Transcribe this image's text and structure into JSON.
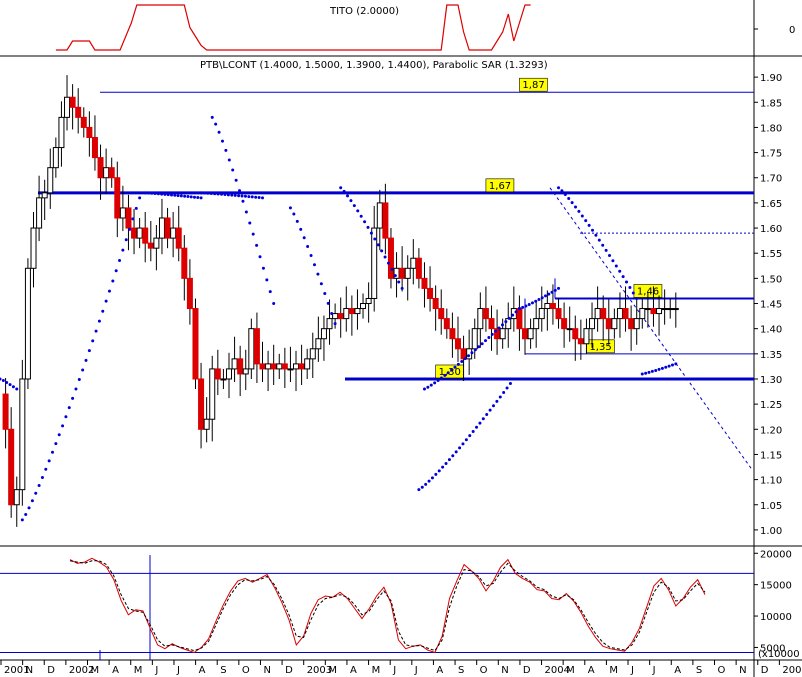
{
  "chart_data": [
    {
      "type": "line",
      "panel": "indicator-top",
      "title": "TITO (2.0000)",
      "ytick_labels": [
        "0"
      ],
      "series": [
        {
          "name": "TITO",
          "color": "#dd0000",
          "x": [
            0.2,
            0.22,
            0.24,
            0.26,
            0.28,
            0.3,
            0.32,
            0.34,
            0.36,
            0.38,
            0.4,
            0.43,
            0.45,
            0.47,
            0.49,
            0.51,
            0.54,
            0.56,
            0.58,
            0.6,
            0.62,
            0.64,
            0.66,
            0.68,
            0.7,
            0.72,
            0.74,
            0.76,
            0.78,
            0.8,
            0.82,
            0.84,
            0.86,
            0.88,
            0.9,
            0.92,
            0.94,
            0.96,
            0.98,
            1.0,
            1.02,
            1.04,
            1.06,
            1.08,
            1.1,
            1.12,
            1.14,
            1.16,
            1.18,
            1.2,
            1.22,
            1.24,
            1.26,
            1.28,
            1.3,
            1.32,
            1.34,
            1.36,
            1.38,
            1.4,
            1.42,
            1.44,
            1.46,
            1.48,
            1.5,
            1.52,
            1.54,
            1.56,
            1.58,
            1.6,
            1.62,
            1.64,
            1.66,
            1.68,
            1.7,
            1.72,
            1.74,
            1.76,
            1.78,
            1.8,
            1.82,
            1.84,
            1.86,
            1.88,
            1.9
          ],
          "values": [
            0,
            0,
            0,
            0.2,
            0.2,
            0.2,
            0.2,
            0,
            0,
            0,
            0,
            0,
            0.3,
            0.6,
            1,
            1,
            1,
            1,
            1,
            1,
            1,
            1,
            1,
            0.5,
            0.3,
            0.1,
            0,
            0,
            0,
            0,
            0,
            0,
            0,
            0,
            0,
            0,
            0,
            0,
            0,
            0,
            0,
            0,
            0,
            0,
            0,
            0,
            0,
            0,
            0,
            0,
            0,
            0,
            0,
            0,
            0,
            0,
            0,
            0,
            0,
            0,
            0,
            0,
            0,
            0,
            0,
            0,
            0,
            0,
            0,
            1,
            1,
            1,
            0.4,
            0,
            0,
            0,
            0,
            0,
            0.2,
            0.4,
            0.8,
            0.2,
            0.6,
            1,
            1
          ]
        }
      ]
    },
    {
      "type": "candlestick",
      "panel": "price",
      "title": "PTB\\LCONT (1.4000, 1.5000, 1.3900, 1.4400), Parabolic SAR (1.3293)",
      "ylim": [
        0.97,
        1.94
      ],
      "yticks": [
        1.0,
        1.05,
        1.1,
        1.15,
        1.2,
        1.25,
        1.3,
        1.35,
        1.4,
        1.45,
        1.5,
        1.55,
        1.6,
        1.65,
        1.7,
        1.75,
        1.8,
        1.85,
        1.9
      ],
      "ytick_labels": [
        "1.00",
        "1.05",
        "1.10",
        "1.15",
        "1.20",
        "1.25",
        "1.30",
        "1.35",
        "1.40",
        "1.45",
        "1.50",
        "1.55",
        "1.60",
        "1.65",
        "1.70",
        "1.75",
        "1.80",
        "1.85",
        "1.90"
      ],
      "horizontal_levels": [
        {
          "value": 1.87,
          "label": "1,87"
        },
        {
          "value": 1.67,
          "label": "1,67"
        },
        {
          "value": 1.46,
          "label": "1,46"
        },
        {
          "value": 1.35,
          "label": "1,35"
        },
        {
          "value": 1.3,
          "label": "1,30"
        }
      ],
      "dotted_level": 1.59,
      "sar": {
        "name": "Parabolic SAR",
        "color": "#0000dd",
        "value": 1.3293,
        "segments": [
          {
            "t0": 0.0,
            "t1": 0.06,
            "v0": 1.3,
            "v1": 1.28
          },
          {
            "t0": 0.08,
            "t1": 0.5,
            "v0": 1.02,
            "v1": 1.66
          },
          {
            "t0": 0.52,
            "t1": 0.72,
            "v0": 1.67,
            "v1": 1.66
          },
          {
            "t0": 0.72,
            "t1": 0.94,
            "v0": 1.67,
            "v1": 1.66
          },
          {
            "t0": 0.76,
            "t1": 0.98,
            "v0": 1.82,
            "v1": 1.45
          },
          {
            "t0": 1.04,
            "t1": 1.2,
            "v0": 1.64,
            "v1": 1.41
          },
          {
            "t0": 1.22,
            "t1": 1.44,
            "v0": 1.68,
            "v1": 1.48
          },
          {
            "t0": 1.5,
            "t1": 1.84,
            "v0": 1.08,
            "v1": 1.3
          },
          {
            "t0": 1.52,
            "t1": 1.86,
            "v0": 1.28,
            "v1": 1.44
          },
          {
            "t0": 1.86,
            "t1": 2.0,
            "v0": 1.44,
            "v1": 1.48
          },
          {
            "t0": 2.0,
            "t1": 2.28,
            "v0": 1.68,
            "v1": 1.46
          },
          {
            "t0": 2.3,
            "t1": 2.42,
            "v0": 1.31,
            "v1": 1.33
          }
        ]
      },
      "ohlc_path": {
        "t": [
          0.0,
          0.02,
          0.04,
          0.06,
          0.08,
          0.1,
          0.12,
          0.14,
          0.16,
          0.18,
          0.2,
          0.22,
          0.24,
          0.26,
          0.28,
          0.3,
          0.32,
          0.34,
          0.36,
          0.38,
          0.4,
          0.42,
          0.44,
          0.46,
          0.48,
          0.5,
          0.52,
          0.54,
          0.56,
          0.58,
          0.6,
          0.62,
          0.64,
          0.66,
          0.68,
          0.7,
          0.72,
          0.74,
          0.76,
          0.78,
          0.8,
          0.82,
          0.84,
          0.86,
          0.88,
          0.9,
          0.92,
          0.94,
          0.96,
          0.98,
          1.0,
          1.02,
          1.04,
          1.06,
          1.08,
          1.1,
          1.12,
          1.14,
          1.16,
          1.18,
          1.2,
          1.22,
          1.24,
          1.26,
          1.28,
          1.3,
          1.32,
          1.34,
          1.36,
          1.38,
          1.4,
          1.42,
          1.44,
          1.46,
          1.48,
          1.5,
          1.52,
          1.54,
          1.56,
          1.58,
          1.6,
          1.62,
          1.64,
          1.66,
          1.68,
          1.7,
          1.72,
          1.74,
          1.76,
          1.78,
          1.8,
          1.82,
          1.84,
          1.86,
          1.88,
          1.9,
          1.92,
          1.94,
          1.96,
          1.98,
          2.0,
          2.02,
          2.04,
          2.06,
          2.08,
          2.1,
          2.12,
          2.14,
          2.16,
          2.18,
          2.2,
          2.22,
          2.24,
          2.26,
          2.28,
          2.3,
          2.32,
          2.34,
          2.36,
          2.38,
          2.4,
          2.42
        ],
        "close": [
          1.27,
          1.2,
          1.05,
          1.08,
          1.3,
          1.52,
          1.6,
          1.66,
          1.67,
          1.72,
          1.76,
          1.82,
          1.86,
          1.84,
          1.82,
          1.8,
          1.78,
          1.74,
          1.7,
          1.72,
          1.7,
          1.62,
          1.64,
          1.6,
          1.58,
          1.6,
          1.57,
          1.56,
          1.58,
          1.62,
          1.58,
          1.6,
          1.56,
          1.5,
          1.44,
          1.3,
          1.2,
          1.22,
          1.32,
          1.3,
          1.3,
          1.32,
          1.34,
          1.31,
          1.32,
          1.4,
          1.33,
          1.32,
          1.33,
          1.32,
          1.33,
          1.32,
          1.32,
          1.33,
          1.32,
          1.34,
          1.36,
          1.38,
          1.4,
          1.42,
          1.43,
          1.42,
          1.44,
          1.43,
          1.44,
          1.45,
          1.46,
          1.6,
          1.65,
          1.58,
          1.5,
          1.52,
          1.5,
          1.52,
          1.54,
          1.5,
          1.48,
          1.46,
          1.44,
          1.42,
          1.4,
          1.38,
          1.36,
          1.34,
          1.36,
          1.4,
          1.44,
          1.42,
          1.4,
          1.38,
          1.4,
          1.42,
          1.44,
          1.4,
          1.38,
          1.4,
          1.42,
          1.44,
          1.45,
          1.44,
          1.42,
          1.4,
          1.4,
          1.38,
          1.37,
          1.4,
          1.42,
          1.44,
          1.42,
          1.4,
          1.42,
          1.44,
          1.42,
          1.4,
          1.42,
          1.44,
          1.44,
          1.43,
          1.44,
          1.44,
          1.44,
          1.44
        ]
      }
    },
    {
      "type": "line",
      "panel": "volume-indicator",
      "yticks": [
        5000,
        10000,
        15000,
        20000
      ],
      "ytick_labels": [
        "5000",
        "10000",
        "15000",
        "20000"
      ],
      "ylim": [
        3000,
        21000
      ],
      "unit_label": "(x10000",
      "horizontal_levels": [
        16800,
        4200
      ],
      "series": [
        {
          "name": "indicator",
          "color": "#dd0000",
          "values": [
            19000,
            18400,
            18600,
            19200,
            18600,
            17800,
            15800,
            12500,
            10200,
            11000,
            10800,
            8000,
            5400,
            4800,
            5600,
            5000,
            4600,
            4200,
            5000,
            6400,
            9200,
            11800,
            14000,
            15600,
            16000,
            15400,
            16000,
            16600,
            14600,
            12200,
            9400,
            5400,
            6800,
            10400,
            12600,
            13200,
            13000,
            13800,
            12800,
            11200,
            9600,
            11200,
            13200,
            14600,
            12000,
            6200,
            4800,
            5200,
            5400,
            4600,
            4200,
            6800,
            12800,
            15600,
            18200,
            17200,
            16000,
            14000,
            15600,
            17800,
            19000,
            16800,
            16000,
            15400,
            14200,
            14000,
            12800,
            12600,
            13600,
            12400,
            10600,
            8400,
            6600,
            5200,
            4800,
            4600,
            4400,
            5800,
            8000,
            11400,
            14800,
            16000,
            14200,
            11600,
            12800,
            14600,
            15800,
            13400
          ]
        },
        {
          "name": "signal",
          "color": "#000000",
          "values": [
            18800,
            18600,
            18400,
            18800,
            18800,
            18200,
            16400,
            13400,
            11200,
            10800,
            10600,
            8600,
            6200,
            5200,
            5400,
            5100,
            4800,
            4500,
            4900,
            6000,
            8600,
            11200,
            13400,
            15000,
            15800,
            15600,
            15800,
            16300,
            15000,
            12800,
            10200,
            6800,
            6600,
            9400,
            11800,
            12800,
            13000,
            13400,
            13000,
            11800,
            10200,
            10800,
            12600,
            14000,
            12400,
            7600,
            5400,
            5200,
            5300,
            4900,
            4500,
            6200,
            11400,
            14800,
            17400,
            17200,
            16300,
            14800,
            15200,
            17000,
            18400,
            17200,
            16300,
            15600,
            14600,
            14200,
            13200,
            12800,
            13400,
            12600,
            11000,
            9000,
            7200,
            5800,
            5000,
            4800,
            4600,
            5400,
            7400,
            10600,
            13800,
            15400,
            14600,
            12400,
            12600,
            14000,
            15200,
            13800
          ]
        }
      ]
    }
  ],
  "x_axis": {
    "ticks": [
      "2001",
      "N",
      "D",
      "2002",
      "M",
      "A",
      "M",
      "J",
      "J",
      "A",
      "S",
      "O",
      "N",
      "D",
      "2003",
      "M",
      "A",
      "M",
      "J",
      "J",
      "A",
      "S",
      "O",
      "N",
      "D",
      "2004",
      "M",
      "A",
      "M",
      "J",
      "J",
      "A",
      "S",
      "O",
      "N",
      "D",
      "200"
    ]
  },
  "colors": {
    "candle_up": "#000000",
    "candle_down": "#dd0000",
    "sar": "#0000dd",
    "levels": "#0000cc",
    "badge_fill": "#ffff00",
    "tito": "#dd0000"
  }
}
